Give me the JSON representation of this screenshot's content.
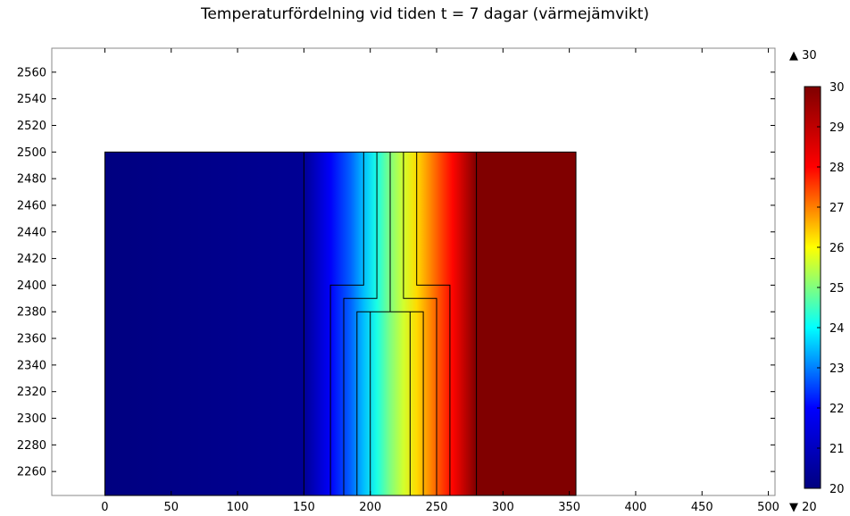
{
  "chart_data": {
    "type": "heatmap",
    "title": "Temperaturfördelning vid tiden t = 7 dagar (värmejämvikt)",
    "xlabel": "",
    "ylabel": "",
    "xlim": [
      -40,
      505
    ],
    "ylim": [
      2242,
      2578
    ],
    "x_ticks": [
      0,
      50,
      100,
      150,
      200,
      250,
      300,
      350,
      400,
      450,
      500
    ],
    "y_ticks": [
      2260,
      2280,
      2300,
      2320,
      2340,
      2360,
      2380,
      2400,
      2420,
      2440,
      2460,
      2480,
      2500,
      2520,
      2540,
      2560
    ],
    "domain": {
      "x": [
        0,
        355
      ],
      "y": [
        2242,
        2500
      ]
    },
    "temperature_profile": {
      "x": [
        0,
        150,
        170,
        185,
        195,
        205,
        215,
        225,
        235,
        245,
        255,
        262,
        280,
        355
      ],
      "T": [
        20,
        20.2,
        21.2,
        22.2,
        23.1,
        24.0,
        25.0,
        25.8,
        26.6,
        27.4,
        28.2,
        28.7,
        30,
        30
      ]
    },
    "boundary_lines": [
      [
        [
          150,
          2242
        ],
        [
          150,
          2500
        ]
      ],
      [
        [
          170,
          2242
        ],
        [
          170,
          2400
        ],
        [
          195,
          2400
        ],
        [
          195,
          2500
        ]
      ],
      [
        [
          180,
          2242
        ],
        [
          180,
          2390
        ],
        [
          205,
          2390
        ],
        [
          205,
          2500
        ]
      ],
      [
        [
          190,
          2242
        ],
        [
          190,
          2380
        ],
        [
          240,
          2380
        ],
        [
          240,
          2242
        ]
      ],
      [
        [
          200,
          2242
        ],
        [
          200,
          2380
        ]
      ],
      [
        [
          215,
          2380
        ],
        [
          215,
          2500
        ]
      ],
      [
        [
          225,
          2500
        ],
        [
          225,
          2390
        ],
        [
          250,
          2390
        ],
        [
          250,
          2242
        ]
      ],
      [
        [
          235,
          2500
        ],
        [
          235,
          2400
        ],
        [
          260,
          2400
        ],
        [
          260,
          2242
        ]
      ],
      [
        [
          230,
          2242
        ],
        [
          230,
          2380
        ]
      ],
      [
        [
          280,
          2242
        ],
        [
          280,
          2500
        ]
      ]
    ],
    "colorbar": {
      "min": 20,
      "max": 30,
      "ticks": [
        20,
        21,
        22,
        23,
        24,
        25,
        26,
        27,
        28,
        29,
        30
      ],
      "colors": [
        "#00007f",
        "#0000ff",
        "#00ffff",
        "#ffff00",
        "#ff0000",
        "#7f0000"
      ],
      "max_label": "▲ 30",
      "min_label": "▼ 20"
    },
    "grid": false
  }
}
